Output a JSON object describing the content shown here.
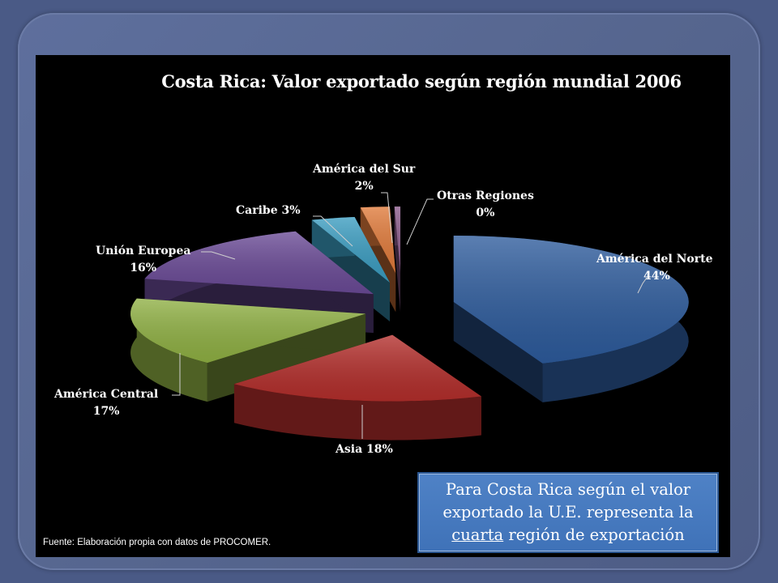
{
  "chart_data": {
    "type": "pie",
    "style": "3d-exploded",
    "title": "Costa Rica: Valor exportado según  región mundial 2006",
    "slices": [
      {
        "label": "América del Norte",
        "pct_text": "44%",
        "value": 44,
        "color": "#2d5b9c"
      },
      {
        "label": "Asia",
        "pct_text": "18%",
        "value": 18,
        "color": "#b32e2b"
      },
      {
        "label": "América Central",
        "pct_text": "17%",
        "value": 17,
        "color": "#8fb043"
      },
      {
        "label": "Unión Europea",
        "pct_text": "16%",
        "value": 16,
        "color": "#6a4a96"
      },
      {
        "label": "Caribe",
        "pct_text": "3%",
        "value": 3,
        "color": "#3a9cc0"
      },
      {
        "label": "América del Sur",
        "pct_text": "2%",
        "value": 2,
        "color": "#e07a3a"
      },
      {
        "label": "Otras Regiones",
        "pct_text": "0%",
        "value": 0.4,
        "color": "#8a5a8a"
      }
    ]
  },
  "labels": {
    "norte_line1": "América del Norte",
    "norte_line2": "44%",
    "asia": "Asia 18%",
    "central_line1": "América Central",
    "central_line2": "17%",
    "ue_line1": "Unión Europea",
    "ue_line2": "16%",
    "caribe": "Caribe 3%",
    "sur_line1": "América del Sur",
    "sur_line2": "2%",
    "otras_line1": "Otras Regiones",
    "otras_line2": "0%"
  },
  "source": "Fuente: Elaboración propia con datos de PROCOMER.",
  "callout": {
    "line1": "Para Costa Rica según el valor",
    "line2": "exportado la U.E. representa la",
    "emph": "cuarta",
    "line3_rest": " región de exportación"
  }
}
